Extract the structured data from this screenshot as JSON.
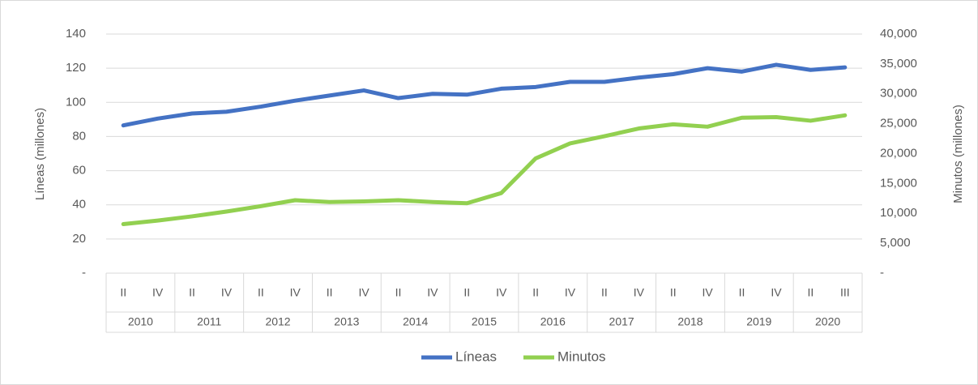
{
  "chart_data": {
    "type": "line",
    "categories": [
      "II",
      "IV",
      "II",
      "IV",
      "II",
      "IV",
      "II",
      "IV",
      "II",
      "IV",
      "II",
      "IV",
      "II",
      "IV",
      "II",
      "IV",
      "II",
      "IV",
      "II",
      "IV",
      "II",
      "III"
    ],
    "category_groups": [
      "2010",
      "2011",
      "2012",
      "2013",
      "2014",
      "2015",
      "2016",
      "2017",
      "2018",
      "2019",
      "2020"
    ],
    "y_label": "Líneas (millones)",
    "y2_label": "Minutos (millones)",
    "ylim": [
      0,
      140
    ],
    "yticks": [
      {
        "value": 0,
        "label": "-"
      },
      20,
      40,
      60,
      80,
      100,
      120,
      140
    ],
    "y2lim": [
      0,
      40000
    ],
    "y2ticks": [
      {
        "value": 0,
        "label": "-"
      },
      {
        "value": 5000,
        "label": "5,000"
      },
      {
        "value": 10000,
        "label": "10,000"
      },
      {
        "value": 15000,
        "label": "15,000"
      },
      {
        "value": 20000,
        "label": "20,000"
      },
      {
        "value": 25000,
        "label": "25,000"
      },
      {
        "value": 30000,
        "label": "30,000"
      },
      {
        "value": 35000,
        "label": "35,000"
      },
      {
        "value": 40000,
        "label": "40,000"
      }
    ],
    "grid": true,
    "legend": "bottom",
    "series": [
      {
        "name": "Líneas",
        "color": "#4472c4",
        "values": [
          86.5,
          90.5,
          93.5,
          94.5,
          97.5,
          101,
          104,
          107,
          102.5,
          105,
          104.5,
          108,
          109,
          112,
          112,
          114.5,
          116.5,
          120,
          118,
          122,
          119,
          120.5
        ]
      },
      {
        "name": "Minutos",
        "color": "#92d050",
        "axis": "y2",
        "values": [
          8200,
          8800,
          9500,
          10300,
          11200,
          12200,
          11900,
          12000,
          12200,
          11900,
          11700,
          13400,
          19200,
          21700,
          22900,
          24200,
          24900,
          24500,
          26000,
          26100,
          25500,
          26400
        ]
      }
    ]
  }
}
